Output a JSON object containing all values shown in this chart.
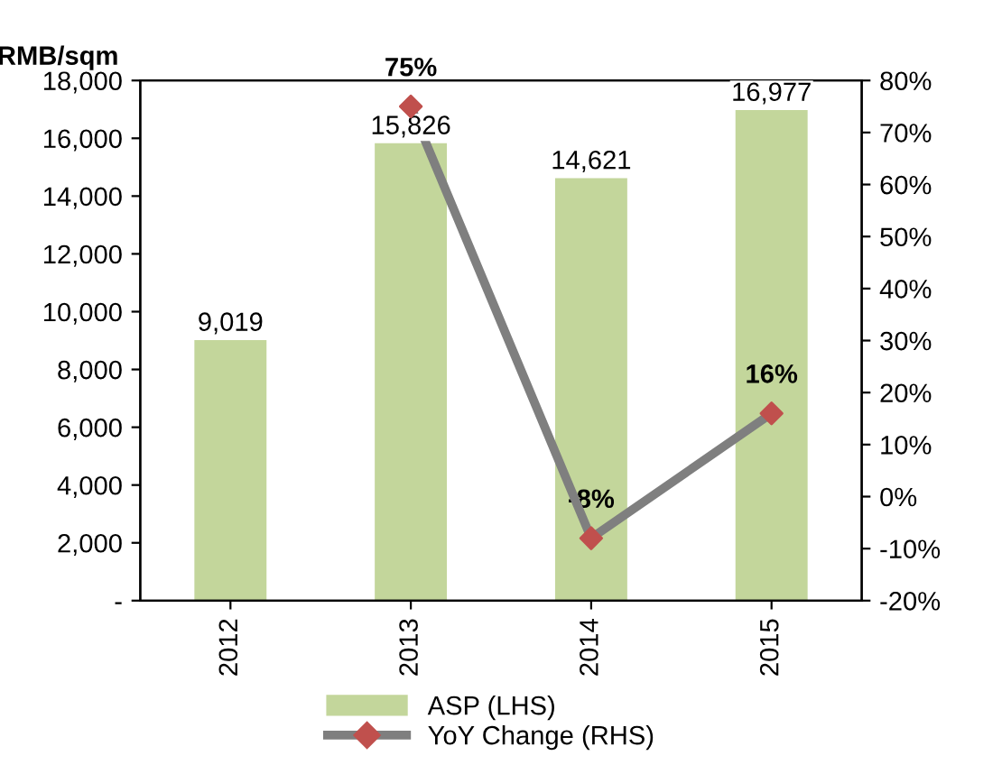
{
  "chart_data": {
    "type": "bar",
    "ylabel": "RMB/sqm",
    "categories": [
      "2012",
      "2013",
      "2014",
      "2015"
    ],
    "series": [
      {
        "name": "ASP (LHS)",
        "color": "#c3d69b",
        "values": [
          9019,
          15826,
          14621,
          16977
        ],
        "value_labels": [
          "9,019",
          "15,826",
          "14,621",
          "16,977"
        ]
      },
      {
        "name": "YoY Change (RHS)",
        "type": "line",
        "axis": "y2",
        "color": "#7f7f7f",
        "marker": "diamond",
        "colors": [
          "#c0504d",
          "#c0504d",
          "#c0504d",
          "#c0504d"
        ],
        "values": [
          null,
          75,
          -8,
          16
        ],
        "value_labels": [
          null,
          "75%",
          "-8%",
          "16%"
        ]
      }
    ],
    "ylim": [
      0,
      18000
    ],
    "yticks": [
      {
        "value": 0,
        "label": "-"
      },
      {
        "value": 2000,
        "label": "2,000"
      },
      {
        "value": 4000,
        "label": "4,000"
      },
      {
        "value": 6000,
        "label": "6,000"
      },
      {
        "value": 8000,
        "label": "8,000"
      },
      {
        "value": 10000,
        "label": "10,000"
      },
      {
        "value": 12000,
        "label": "12,000"
      },
      {
        "value": 14000,
        "label": "14,000"
      },
      {
        "value": 16000,
        "label": "16,000"
      },
      {
        "value": 18000,
        "label": "18,000"
      }
    ],
    "y2lim": [
      -20,
      80
    ],
    "y2ticks": [
      {
        "value": -20,
        "label": "-20%"
      },
      {
        "value": -10,
        "label": "-10%"
      },
      {
        "value": 0,
        "label": "0%"
      },
      {
        "value": 10,
        "label": "10%"
      },
      {
        "value": 20,
        "label": "20%"
      },
      {
        "value": 30,
        "label": "30%"
      },
      {
        "value": 40,
        "label": "40%"
      },
      {
        "value": 50,
        "label": "50%"
      },
      {
        "value": 60,
        "label": "60%"
      },
      {
        "value": 70,
        "label": "70%"
      },
      {
        "value": 80,
        "label": "80%"
      }
    ],
    "grid": false,
    "legend": "bottom"
  }
}
